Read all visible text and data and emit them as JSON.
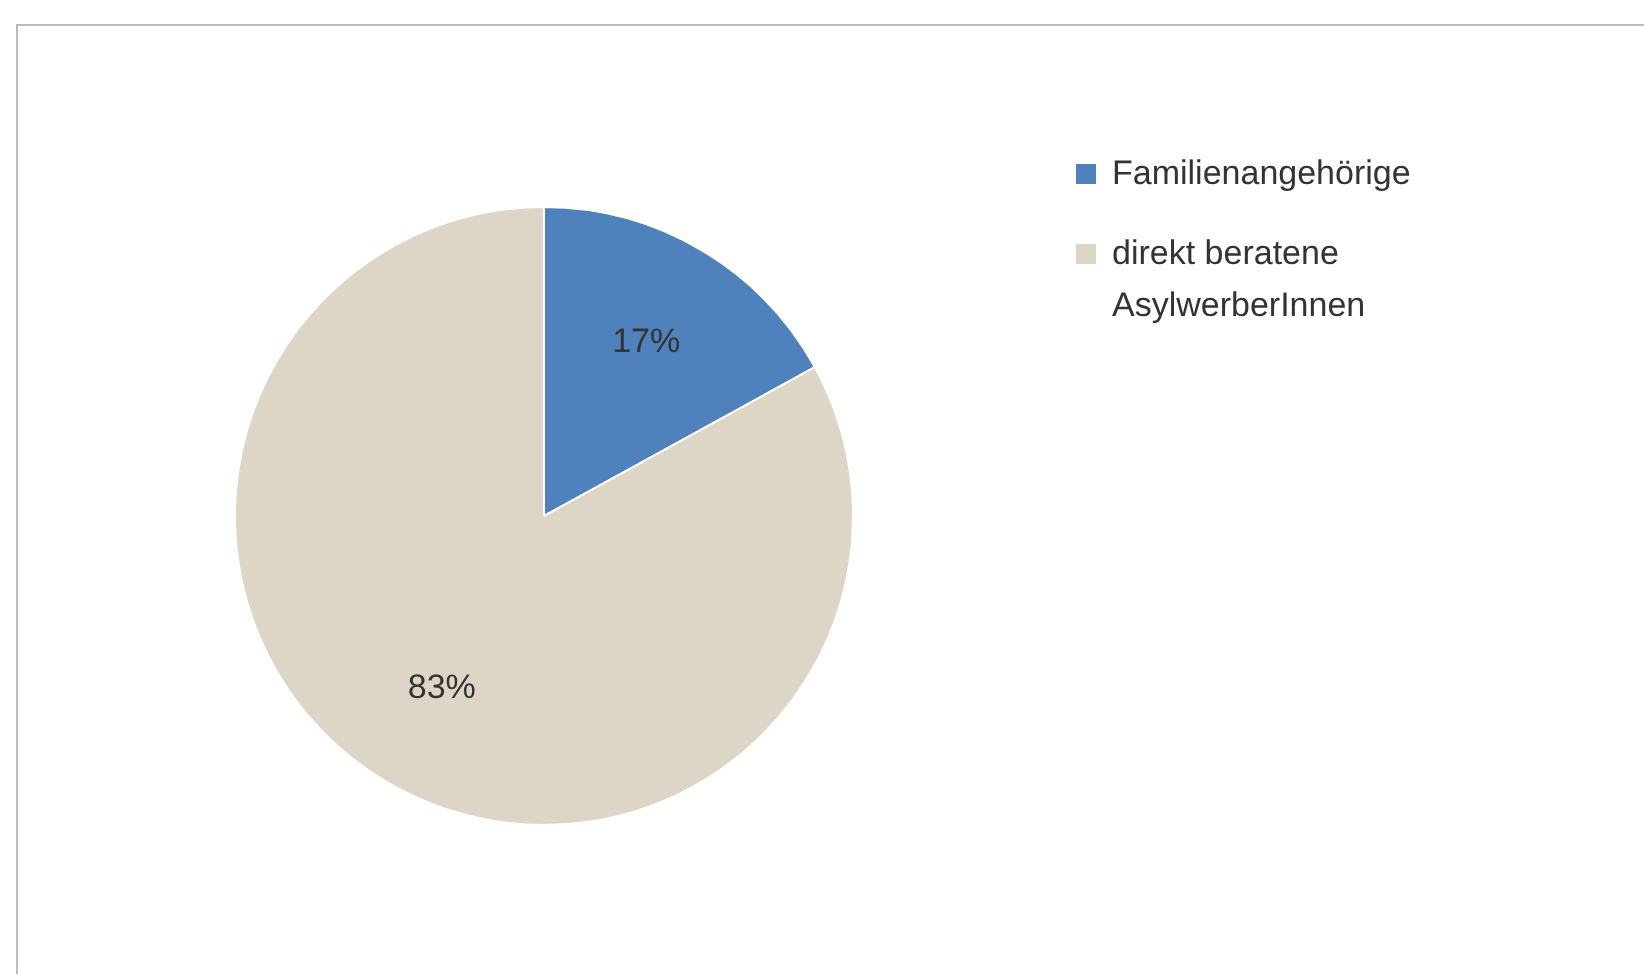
{
  "chart_data": {
    "type": "pie",
    "categories": [
      "Familienangehörige",
      "direkt beratene AsylwerberInnen"
    ],
    "values": [
      17,
      83
    ],
    "colors": [
      "#4f81bd",
      "#ddd5c5"
    ],
    "value_labels": [
      "17%",
      "83%"
    ],
    "legend": "top right"
  }
}
